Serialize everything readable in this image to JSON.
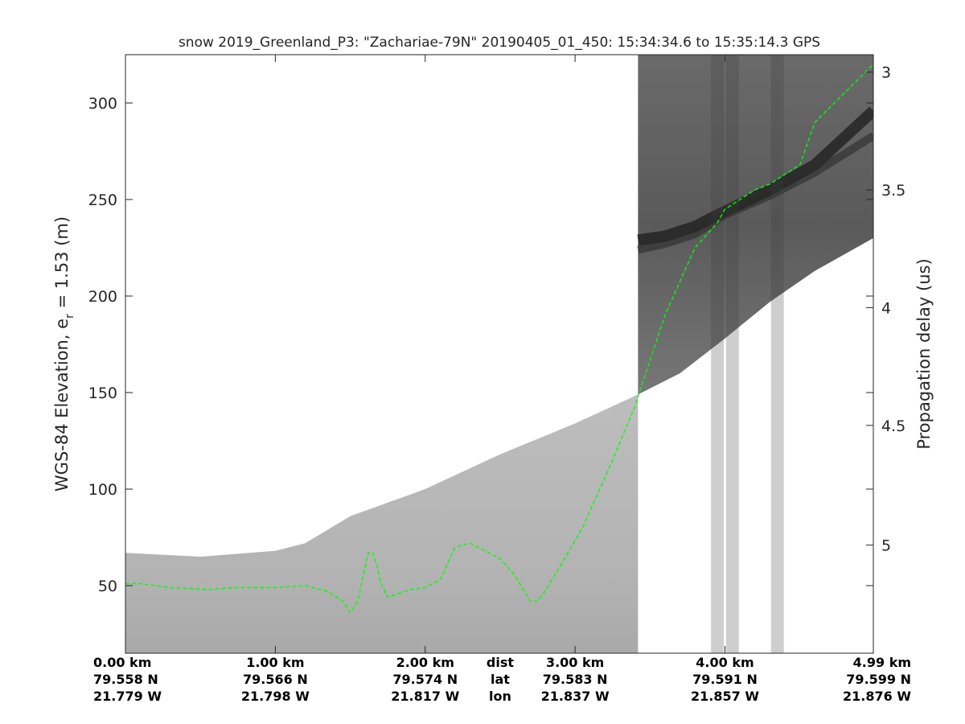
{
  "chart_data": {
    "type": "radargram",
    "title": "snow 2019_Greenland_P3: \"Zachariae-79N\"  20190405_01_450: 15:34:34.6 to 15:35:14.3 GPS",
    "ylabel_left": {
      "main": "WGS-84 Elevation, e",
      "sub": "r",
      "rest": " = 1.53 (m)"
    },
    "ylabel_right": "Propagation delay (us)",
    "ylim": [
      15,
      325
    ],
    "xlim": [
      0,
      4.99
    ],
    "yticks_left": [
      50,
      100,
      150,
      200,
      250,
      300
    ],
    "yticks_right": [
      {
        "value": 3,
        "elev": 316
      },
      {
        "value": 3.5,
        "elev": 255
      },
      {
        "value": 4,
        "elev": 194
      },
      {
        "value": 4.5,
        "elev": 133
      },
      {
        "value": 5,
        "elev": 71
      }
    ],
    "x_info_rows": [
      {
        "label": "dist",
        "values": [
          "0.00 km",
          "1.00 km",
          "2.00 km",
          "3.00 km",
          "4.00 km",
          "4.99 km"
        ]
      },
      {
        "label": "lat",
        "values": [
          "79.558 N",
          "79.566 N",
          "79.574 N",
          "79.583 N",
          "79.591 N",
          "79.599 N"
        ]
      },
      {
        "label": "lon",
        "values": [
          "21.779 W",
          "21.798 W",
          "21.817 W",
          "21.837 W",
          "21.857 W",
          "21.876 W"
        ]
      }
    ],
    "x_tick_positions_km": [
      0,
      1,
      2,
      3,
      4,
      4.99
    ],
    "bed_trace": {
      "color": "#00ff00",
      "style": "dashed",
      "x": [
        0,
        0.1,
        0.3,
        0.55,
        0.75,
        1.0,
        1.2,
        1.35,
        1.45,
        1.5,
        1.55,
        1.62,
        1.65,
        1.68,
        1.7,
        1.75,
        1.9,
        2.0,
        2.1,
        2.2,
        2.3,
        2.4,
        2.5,
        2.6,
        2.7,
        2.75,
        2.8,
        2.9,
        3.05,
        3.25,
        3.4,
        3.42,
        3.6,
        3.8,
        3.95,
        4.0,
        4.2,
        4.3,
        4.5,
        4.6,
        4.99
      ],
      "y": [
        51,
        51,
        49,
        48,
        49,
        49,
        50,
        47,
        42,
        36,
        42,
        67,
        67,
        60,
        52,
        44,
        48,
        49,
        53,
        70,
        72,
        68,
        64,
        55,
        42,
        42,
        47,
        60,
        80,
        115,
        143,
        148,
        190,
        225,
        238,
        245,
        255,
        258,
        268,
        290,
        320
      ]
    },
    "surface": {
      "x": [
        0,
        0.5,
        1.0,
        1.2,
        1.5,
        2.0,
        2.5,
        3.0,
        3.42,
        3.7,
        4.0,
        4.3,
        4.6,
        4.99
      ],
      "y": [
        67,
        65,
        68,
        72,
        86,
        100,
        118,
        134,
        149,
        160,
        178,
        197,
        213,
        230
      ]
    },
    "bands": [
      {
        "x": [
          3.42,
          3.6,
          3.8,
          3.95,
          4.3,
          4.6,
          4.99
        ],
        "y": [
          229,
          231,
          236,
          242,
          255,
          268,
          296
        ]
      },
      {
        "x": [
          3.42,
          3.6,
          3.8,
          4.0,
          4.3,
          4.6,
          4.99
        ],
        "y": [
          224,
          227,
          232,
          242,
          252,
          264,
          283
        ]
      }
    ],
    "colors": {
      "low_half_bg": "#b9b9b9",
      "upper_panel_bg": "#5e5e5e",
      "band": "#1c1c1c",
      "axis": "#262626"
    }
  }
}
